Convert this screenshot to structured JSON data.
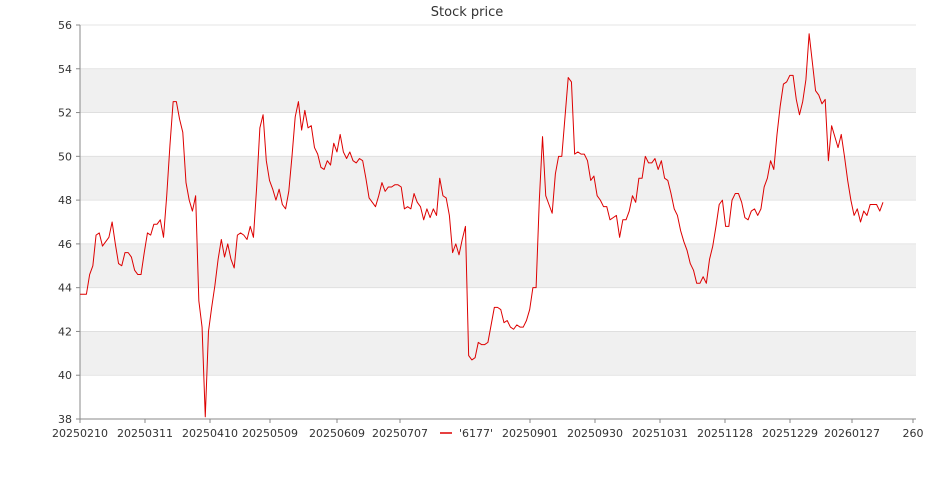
{
  "chart_data": {
    "type": "line",
    "title": "Stock price",
    "xlabel": "",
    "ylabel": "",
    "ylim": [
      38,
      56
    ],
    "yticks": [
      38,
      40,
      42,
      44,
      46,
      48,
      50,
      52,
      54,
      56
    ],
    "xticks": [
      "20250210",
      "20250311",
      "20250410",
      "20250509",
      "20250609",
      "20250707",
      "20250901",
      "20250930",
      "20251031",
      "20251128",
      "20251229",
      "20260127",
      "260"
    ],
    "grid": "horizontal",
    "legend_position": "bottom",
    "colors": {
      "series": "#dd0000",
      "band": "#f0f0f0",
      "grid": "#dddddd",
      "axis": "#888888"
    },
    "series": [
      {
        "name": "'6177'",
        "values": [
          43.7,
          43.7,
          43.7,
          44.6,
          45.0,
          46.4,
          46.5,
          45.9,
          46.1,
          46.3,
          47.0,
          46.0,
          45.1,
          45.0,
          45.6,
          45.6,
          45.4,
          44.8,
          44.6,
          44.6,
          45.6,
          46.5,
          46.4,
          46.9,
          46.9,
          47.1,
          46.3,
          48.2,
          50.5,
          52.5,
          52.5,
          51.7,
          51.1,
          48.8,
          48.0,
          47.5,
          48.2,
          43.4,
          42.2,
          38.1,
          42.0,
          43.1,
          44.1,
          45.3,
          46.2,
          45.4,
          46.0,
          45.3,
          44.9,
          46.4,
          46.5,
          46.4,
          46.2,
          46.8,
          46.3,
          48.6,
          51.3,
          51.9,
          49.8,
          48.9,
          48.5,
          48.0,
          48.5,
          47.8,
          47.6,
          48.4,
          50.0,
          51.8,
          52.5,
          51.2,
          52.1,
          51.3,
          51.4,
          50.4,
          50.1,
          49.5,
          49.4,
          49.8,
          49.6,
          50.6,
          50.2,
          51.0,
          50.2,
          49.9,
          50.2,
          49.8,
          49.7,
          49.9,
          49.8,
          49.0,
          48.1,
          47.9,
          47.7,
          48.2,
          48.8,
          48.4,
          48.6,
          48.6,
          48.7,
          48.7,
          48.6,
          47.6,
          47.7,
          47.6,
          48.3,
          47.9,
          47.7,
          47.1,
          47.6,
          47.2,
          47.6,
          47.3,
          49.0,
          48.2,
          48.1,
          47.3,
          45.6,
          46.0,
          45.5,
          46.2,
          46.8,
          40.9,
          40.7,
          40.8,
          41.5,
          41.4,
          41.4,
          41.5,
          42.3,
          43.1,
          43.1,
          43.0,
          42.4,
          42.5,
          42.2,
          42.1,
          42.3,
          42.2,
          42.2,
          42.5,
          43.0,
          44.0,
          44.0,
          48.0,
          50.9,
          48.2,
          47.8,
          47.4,
          49.2,
          50.0,
          50.0,
          51.8,
          53.6,
          53.4,
          50.1,
          50.2,
          50.1,
          50.1,
          49.8,
          48.9,
          49.1,
          48.2,
          48.0,
          47.7,
          47.7,
          47.1,
          47.2,
          47.3,
          46.3,
          47.1,
          47.1,
          47.5,
          48.2,
          47.9,
          49.0,
          49.0,
          50.0,
          49.7,
          49.7,
          49.9,
          49.4,
          49.8,
          49.0,
          48.9,
          48.3,
          47.6,
          47.3,
          46.6,
          46.1,
          45.7,
          45.1,
          44.8,
          44.2,
          44.2,
          44.5,
          44.2,
          45.3,
          45.9,
          46.8,
          47.8,
          48.0,
          46.8,
          46.8,
          48.0,
          48.3,
          48.3,
          47.9,
          47.2,
          47.1,
          47.5,
          47.6,
          47.3,
          47.6,
          48.6,
          49.0,
          49.8,
          49.4,
          51.0,
          52.3,
          53.3,
          53.4,
          53.7,
          53.7,
          52.6,
          51.9,
          52.5,
          53.5,
          55.6,
          54.3,
          53.0,
          52.8,
          52.4,
          52.6,
          49.8,
          51.4,
          50.9,
          50.4,
          51.0,
          50.0,
          48.9,
          48.0,
          47.3,
          47.6,
          47.0,
          47.5,
          47.3,
          47.8,
          47.8,
          47.8,
          47.5,
          47.9
        ]
      }
    ]
  }
}
